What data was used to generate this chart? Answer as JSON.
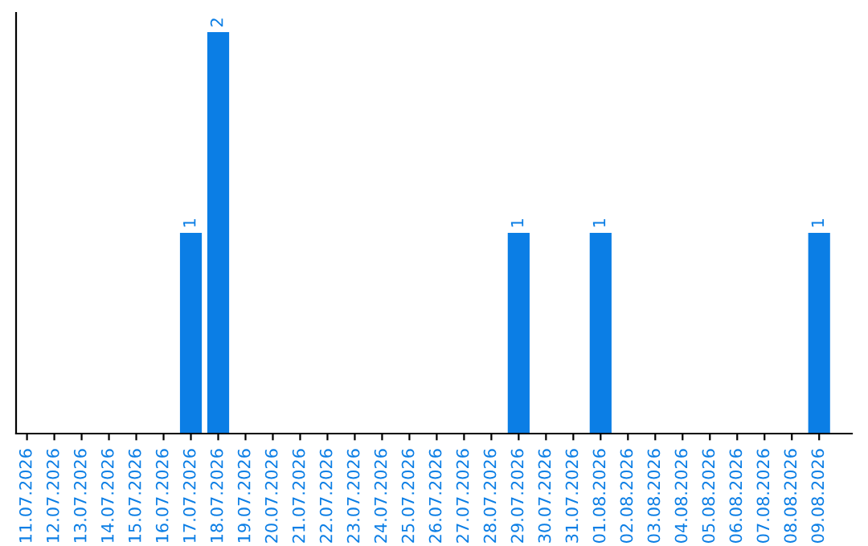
{
  "chart_data": {
    "type": "bar",
    "categories": [
      "11.07.2026",
      "12.07.2026",
      "13.07.2026",
      "14.07.2026",
      "15.07.2026",
      "16.07.2026",
      "17.07.2026",
      "18.07.2026",
      "19.07.2026",
      "20.07.2026",
      "21.07.2026",
      "22.07.2026",
      "23.07.2026",
      "24.07.2026",
      "25.07.2026",
      "26.07.2026",
      "27.07.2026",
      "28.07.2026",
      "29.07.2026",
      "30.07.2026",
      "31.07.2026",
      "01.08.2026",
      "02.08.2026",
      "03.08.2026",
      "04.08.2026",
      "05.08.2026",
      "06.08.2026",
      "07.08.2026",
      "08.08.2026",
      "09.08.2026"
    ],
    "values": [
      0,
      0,
      0,
      0,
      0,
      0,
      1,
      2,
      0,
      0,
      0,
      0,
      0,
      0,
      0,
      0,
      0,
      0,
      1,
      0,
      0,
      1,
      0,
      0,
      0,
      0,
      0,
      0,
      0,
      1
    ],
    "color": "#0b7ee5",
    "value_labels": [
      null,
      null,
      null,
      null,
      null,
      null,
      "1",
      "2",
      null,
      null,
      null,
      null,
      null,
      null,
      null,
      null,
      null,
      null,
      "1",
      null,
      null,
      "1",
      null,
      null,
      null,
      null,
      null,
      null,
      null,
      "1"
    ],
    "tick_labels": "x",
    "grid": false,
    "legend": false
  }
}
